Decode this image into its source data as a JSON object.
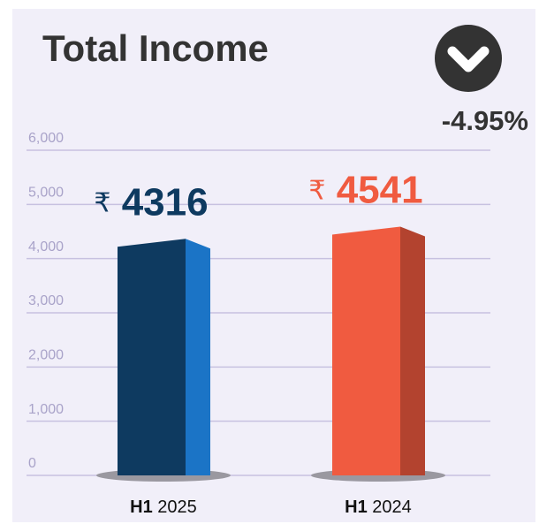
{
  "chart_data": {
    "type": "bar3d",
    "title": "Total Income",
    "change_label": "-4.95%",
    "categories": [
      "H1 2025",
      "H1 2024"
    ],
    "values": [
      4316,
      4541
    ],
    "value_labels": [
      "₹ 4316",
      "₹ 4541"
    ],
    "colors": [
      "#0e3a60",
      "#f05b40"
    ],
    "side_colors": [
      "#1b74c6",
      "#b3432f"
    ],
    "ylim": [
      0,
      6000
    ],
    "yticks": [
      0,
      {
        "value": 1000,
        "label": "1,000"
      },
      {
        "value": 2000,
        "label": "2,000"
      },
      {
        "value": 3000,
        "label": "3,000"
      },
      {
        "value": 4000,
        "label": "4,000"
      },
      {
        "value": 5000,
        "label": "5,000"
      },
      {
        "value": 6000,
        "label": "6,000"
      }
    ],
    "grid": true
  }
}
